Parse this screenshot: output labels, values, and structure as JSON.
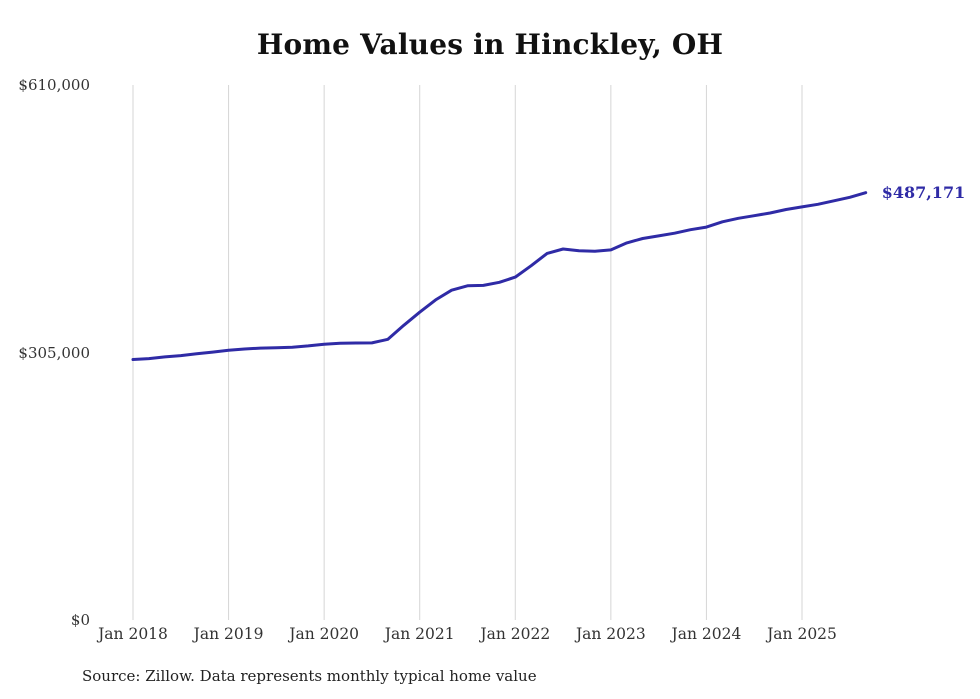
{
  "page": {
    "title": "Home Values in Hinckley, OH",
    "source_note": "Source: Zillow. Data represents monthly typical home value",
    "end_value_label": "$487,171"
  },
  "colors": {
    "line": "#2f2ba6",
    "grid": "#d6d6d6",
    "axis_text": "#333333",
    "title_text": "#111111",
    "background": "#ffffff"
  },
  "chart_data": {
    "type": "line",
    "title": "Home Values in Hinckley, OH",
    "xlabel": "",
    "ylabel": "",
    "ylim": [
      0,
      610000
    ],
    "grid": "vertical",
    "legend": "none",
    "yticks": [
      {
        "value": 610000,
        "label": "$610,000"
      },
      {
        "value": 305000,
        "label": "$305,000"
      },
      {
        "value": 0,
        "label": "$0"
      }
    ],
    "xticks": [
      {
        "date": "2018-01",
        "label": "Jan 2018"
      },
      {
        "date": "2019-01",
        "label": "Jan 2019"
      },
      {
        "date": "2020-01",
        "label": "Jan 2020"
      },
      {
        "date": "2021-01",
        "label": "Jan 2021"
      },
      {
        "date": "2022-01",
        "label": "Jan 2022"
      },
      {
        "date": "2023-01",
        "label": "Jan 2023"
      },
      {
        "date": "2024-01",
        "label": "Jan 2024"
      },
      {
        "date": "2025-01",
        "label": "Jan 2025"
      }
    ],
    "series": [
      {
        "name": "Monthly typical home value",
        "points": [
          {
            "date": "2018-01",
            "value": 297000
          },
          {
            "date": "2018-03",
            "value": 298000
          },
          {
            "date": "2018-05",
            "value": 300000
          },
          {
            "date": "2018-07",
            "value": 301500
          },
          {
            "date": "2018-09",
            "value": 303500
          },
          {
            "date": "2018-11",
            "value": 305500
          },
          {
            "date": "2019-01",
            "value": 307500
          },
          {
            "date": "2019-03",
            "value": 309000
          },
          {
            "date": "2019-05",
            "value": 310000
          },
          {
            "date": "2019-07",
            "value": 310500
          },
          {
            "date": "2019-09",
            "value": 311000
          },
          {
            "date": "2019-11",
            "value": 312500
          },
          {
            "date": "2020-01",
            "value": 314500
          },
          {
            "date": "2020-03",
            "value": 315500
          },
          {
            "date": "2020-05",
            "value": 315800
          },
          {
            "date": "2020-07",
            "value": 316000
          },
          {
            "date": "2020-09",
            "value": 320000
          },
          {
            "date": "2020-11",
            "value": 336000
          },
          {
            "date": "2021-01",
            "value": 351000
          },
          {
            "date": "2021-03",
            "value": 365000
          },
          {
            "date": "2021-05",
            "value": 376000
          },
          {
            "date": "2021-07",
            "value": 381000
          },
          {
            "date": "2021-09",
            "value": 381500
          },
          {
            "date": "2021-11",
            "value": 385000
          },
          {
            "date": "2022-01",
            "value": 391000
          },
          {
            "date": "2022-03",
            "value": 404000
          },
          {
            "date": "2022-05",
            "value": 418000
          },
          {
            "date": "2022-07",
            "value": 423000
          },
          {
            "date": "2022-09",
            "value": 421000
          },
          {
            "date": "2022-11",
            "value": 420500
          },
          {
            "date": "2023-01",
            "value": 422000
          },
          {
            "date": "2023-03",
            "value": 430000
          },
          {
            "date": "2023-05",
            "value": 435000
          },
          {
            "date": "2023-07",
            "value": 438000
          },
          {
            "date": "2023-09",
            "value": 441000
          },
          {
            "date": "2023-11",
            "value": 445000
          },
          {
            "date": "2024-01",
            "value": 448000
          },
          {
            "date": "2024-03",
            "value": 454000
          },
          {
            "date": "2024-05",
            "value": 458000
          },
          {
            "date": "2024-07",
            "value": 461000
          },
          {
            "date": "2024-09",
            "value": 464000
          },
          {
            "date": "2024-11",
            "value": 468000
          },
          {
            "date": "2025-01",
            "value": 471000
          },
          {
            "date": "2025-03",
            "value": 474000
          },
          {
            "date": "2025-05",
            "value": 478000
          },
          {
            "date": "2025-07",
            "value": 482000
          },
          {
            "date": "2025-09",
            "value": 487171
          }
        ]
      }
    ],
    "end_annotation": {
      "date": "2025-09",
      "value": 487171,
      "label": "$487,171"
    }
  }
}
